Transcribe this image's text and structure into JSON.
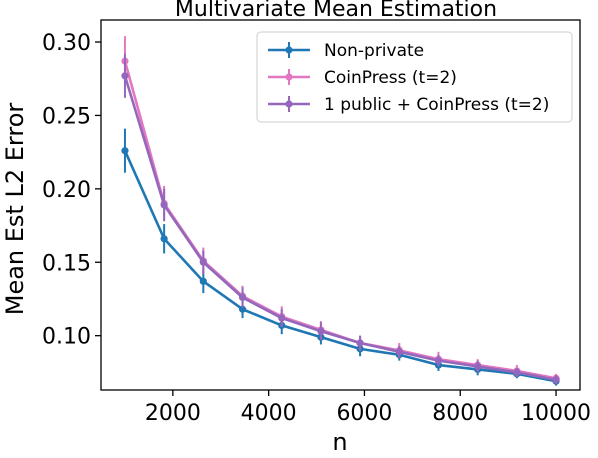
{
  "chart_data": {
    "type": "line",
    "title": "Multivariate Mean Estimation",
    "xlabel": "n",
    "ylabel": "Mean Est L2 Error",
    "xlim": [
      500,
      10500
    ],
    "ylim": [
      0.063,
      0.315
    ],
    "xticks": [
      2000,
      4000,
      6000,
      8000,
      10000
    ],
    "xtick_labels": [
      "2000",
      "4000",
      "6000",
      "8000",
      "10000"
    ],
    "yticks": [
      0.1,
      0.15,
      0.2,
      0.25,
      0.3
    ],
    "ytick_labels": [
      "0.10",
      "0.15",
      "0.20",
      "0.25",
      "0.30"
    ],
    "grid": false,
    "legend_position": "top-right",
    "x": [
      1000,
      1818,
      2636,
      3455,
      4273,
      5091,
      5909,
      6727,
      7545,
      8364,
      9182,
      10000
    ],
    "series": [
      {
        "name": "Non-private",
        "color": "#1f77b4",
        "values": [
          0.226,
          0.166,
          0.137,
          0.118,
          0.107,
          0.099,
          0.091,
          0.087,
          0.08,
          0.077,
          0.074,
          0.069
        ],
        "errors": [
          0.015,
          0.01,
          0.008,
          0.006,
          0.006,
          0.005,
          0.005,
          0.004,
          0.004,
          0.004,
          0.003,
          0.003
        ]
      },
      {
        "name": "CoinPress (t=2)",
        "color": "#e377c2",
        "values": [
          0.287,
          0.19,
          0.151,
          0.127,
          0.113,
          0.104,
          0.095,
          0.09,
          0.084,
          0.08,
          0.076,
          0.071
        ],
        "errors": [
          0.017,
          0.012,
          0.009,
          0.007,
          0.007,
          0.006,
          0.005,
          0.005,
          0.005,
          0.004,
          0.004,
          0.003
        ]
      },
      {
        "name": "1 public + CoinPress (t=2)",
        "color": "#9467bd",
        "values": [
          0.277,
          0.189,
          0.15,
          0.126,
          0.112,
          0.103,
          0.095,
          0.089,
          0.083,
          0.079,
          0.075,
          0.07
        ],
        "errors": [
          0.015,
          0.011,
          0.008,
          0.007,
          0.006,
          0.006,
          0.005,
          0.004,
          0.004,
          0.004,
          0.003,
          0.003
        ]
      }
    ]
  }
}
